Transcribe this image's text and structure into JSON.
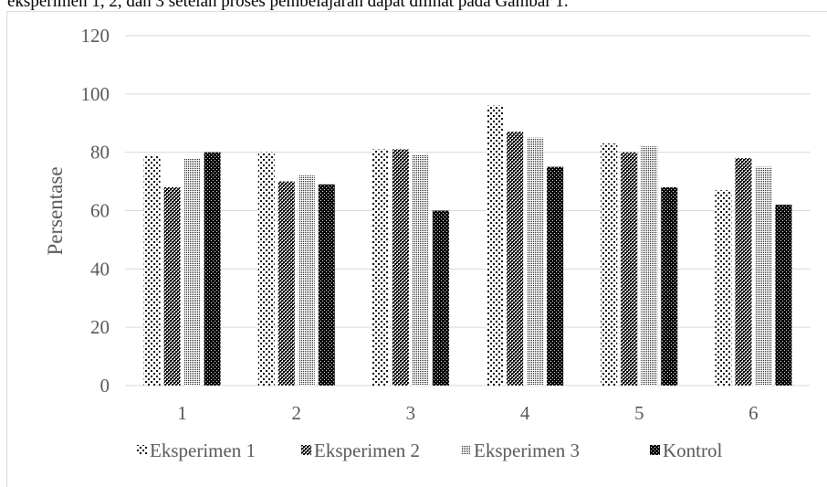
{
  "caption": "eksperimen 1, 2, dan 3 setelah proses pembelajaran dapat dilihat pada Gambar 1.",
  "colors": {
    "grid": "#d9d9d9",
    "text": "#595959",
    "bar_ink": "#000000"
  },
  "chart_data": {
    "type": "bar",
    "title": "",
    "xlabel": "",
    "ylabel": "Persentase",
    "ylim": [
      0,
      120
    ],
    "yticks": [
      0,
      20,
      40,
      60,
      80,
      100,
      120
    ],
    "grid": true,
    "legend_position": "bottom",
    "categories": [
      "1",
      "2",
      "3",
      "4",
      "5",
      "6"
    ],
    "series": [
      {
        "name": "Eksperimen 1",
        "pattern": "sparse-dots",
        "values": [
          79,
          80,
          81,
          96,
          83,
          67
        ]
      },
      {
        "name": "Eksperimen 2",
        "pattern": "dense-checker",
        "values": [
          68,
          70,
          81,
          87,
          80,
          78
        ]
      },
      {
        "name": "Eksperimen 3",
        "pattern": "small-grid",
        "values": [
          78,
          72,
          79,
          85,
          82,
          75
        ]
      },
      {
        "name": "Kontrol",
        "pattern": "dark-checker",
        "values": [
          80,
          69,
          60,
          75,
          68,
          62
        ]
      }
    ]
  }
}
